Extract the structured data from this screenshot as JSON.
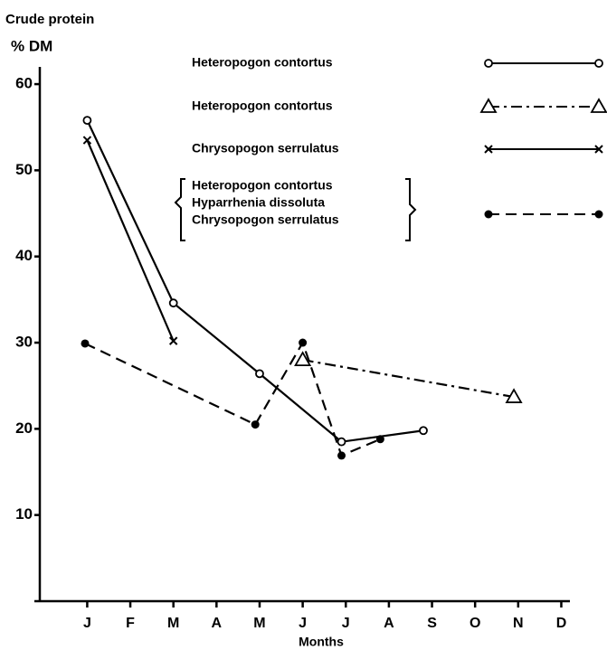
{
  "chart_data": {
    "type": "line",
    "title": "Crude protein",
    "y_label": "% DM",
    "x_label": "Months",
    "xlim": [
      -0.1,
      12.2
    ],
    "xticks": [
      {
        "value": 1,
        "label": "J"
      },
      {
        "value": 2,
        "label": "F"
      },
      {
        "value": 3,
        "label": "M"
      },
      {
        "value": 4,
        "label": "A"
      },
      {
        "value": 5,
        "label": "M"
      },
      {
        "value": 6,
        "label": "J"
      },
      {
        "value": 7,
        "label": "J"
      },
      {
        "value": 8,
        "label": "A"
      },
      {
        "value": 9,
        "label": "S"
      },
      {
        "value": 10,
        "label": "O"
      },
      {
        "value": 11,
        "label": "N"
      },
      {
        "value": 12,
        "label": "D"
      }
    ],
    "ylim": [
      0,
      62
    ],
    "yticks": [
      10,
      20,
      30,
      40,
      50,
      60
    ],
    "grid": false,
    "series": [
      {
        "name": [
          "Heteropogon contortus"
        ],
        "color": "#000",
        "dash": "solid",
        "marker": "circle-open",
        "x": [
          1,
          3,
          5,
          6.9,
          8.8
        ],
        "values": [
          55.8,
          34.6,
          26.4,
          18.5,
          19.8
        ]
      },
      {
        "name": [
          "Heteropogon contortus"
        ],
        "color": "#000",
        "dash": "dashdot",
        "marker": "triangle",
        "x": [
          6,
          10.9
        ],
        "values": [
          28,
          23.7
        ]
      },
      {
        "name": [
          "Chrysopogon serrulatus"
        ],
        "color": "#000",
        "dash": "solid",
        "marker": "cross",
        "x": [
          1,
          3
        ],
        "values": [
          53.5,
          30.2
        ]
      },
      {
        "name": [
          "Heteropogon contortus",
          "Hyparrhenia dissoluta",
          "Chrysopogon serrulatus"
        ],
        "color": "#000",
        "dash": "dashed",
        "marker": "circle-filled",
        "x": [
          0.95,
          4.9,
          6,
          6.9,
          7.8
        ],
        "values": [
          29.9,
          20.5,
          30,
          16.9,
          18.8
        ]
      }
    ]
  }
}
